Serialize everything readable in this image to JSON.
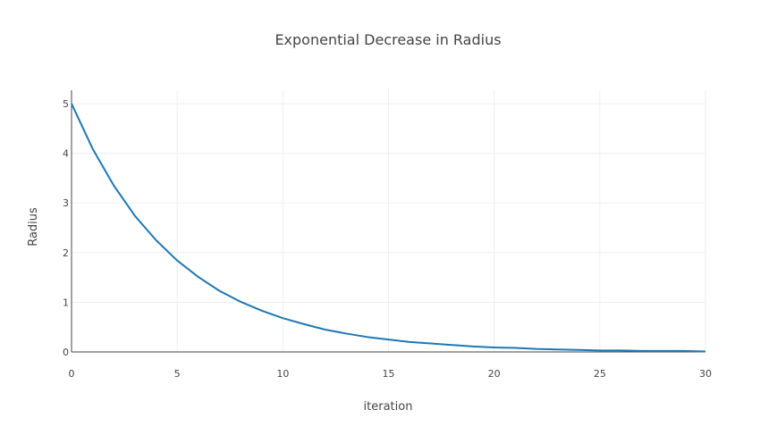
{
  "chart_data": {
    "type": "line",
    "title": "Exponential Decrease in Radius",
    "xlabel": "iteration",
    "ylabel": "Radius",
    "xlim": [
      0,
      30
    ],
    "ylim": [
      0,
      5
    ],
    "xticks": [
      "0",
      "5",
      "10",
      "15",
      "20",
      "25",
      "30"
    ],
    "yticks": [
      "0",
      "1",
      "2",
      "3",
      "4",
      "5"
    ],
    "grid": true,
    "legend": "none",
    "series": [
      {
        "color": "#1f77b4",
        "x": [
          0,
          1,
          2,
          3,
          4,
          5,
          6,
          7,
          8,
          9,
          10,
          11,
          12,
          13,
          14,
          15,
          16,
          17,
          18,
          19,
          20,
          21,
          22,
          23,
          24,
          25,
          26,
          27,
          28,
          29,
          30
        ],
        "y": [
          5,
          4.09,
          3.35,
          2.74,
          2.25,
          1.84,
          1.51,
          1.23,
          1.01,
          0.83,
          0.68,
          0.56,
          0.45,
          0.37,
          0.3,
          0.25,
          0.2,
          0.17,
          0.14,
          0.11,
          0.09,
          0.08,
          0.06,
          0.05,
          0.04,
          0.03,
          0.03,
          0.02,
          0.02,
          0.02,
          0.01
        ]
      }
    ]
  }
}
